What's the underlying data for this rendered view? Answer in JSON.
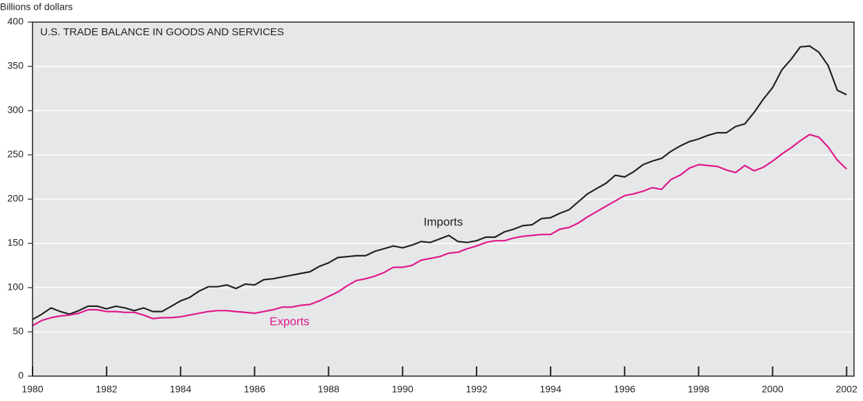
{
  "chart_data": {
    "type": "line",
    "title": "U.S. TRADE BALANCE IN GOODS AND SERVICES",
    "y_label": "Billions of dollars",
    "x": [
      1980,
      1980.25,
      1980.5,
      1980.75,
      1981,
      1981.25,
      1981.5,
      1981.75,
      1982,
      1982.25,
      1982.5,
      1982.75,
      1983,
      1983.25,
      1983.5,
      1983.75,
      1984,
      1984.25,
      1984.5,
      1984.75,
      1985,
      1985.25,
      1985.5,
      1985.75,
      1986,
      1986.25,
      1986.5,
      1986.75,
      1987,
      1987.25,
      1987.5,
      1987.75,
      1988,
      1988.25,
      1988.5,
      1988.75,
      1989,
      1989.25,
      1989.5,
      1989.75,
      1990,
      1990.25,
      1990.5,
      1990.75,
      1991,
      1991.25,
      1991.5,
      1991.75,
      1992,
      1992.25,
      1992.5,
      1992.75,
      1993,
      1993.25,
      1993.5,
      1993.75,
      1994,
      1994.25,
      1994.5,
      1994.75,
      1995,
      1995.25,
      1995.5,
      1995.75,
      1996,
      1996.25,
      1996.5,
      1996.75,
      1997,
      1997.25,
      1997.5,
      1997.75,
      1998,
      1998.25,
      1998.5,
      1998.75,
      1999,
      1999.25,
      1999.5,
      1999.75,
      2000,
      2000.25,
      2000.5,
      2000.75,
      2001,
      2001.25,
      2001.5,
      2001.75,
      2002
    ],
    "series": [
      {
        "name": "Imports",
        "color": "#231f20",
        "values": [
          64,
          70,
          77,
          73,
          70,
          74,
          79,
          79,
          76,
          79,
          77,
          74,
          77,
          73,
          73,
          79,
          85,
          89,
          96,
          101,
          101,
          103,
          99,
          104,
          103,
          109,
          110,
          112,
          114,
          116,
          118,
          124,
          128,
          134,
          135,
          136,
          136,
          141,
          144,
          147,
          145,
          148,
          152,
          151,
          155,
          159,
          152,
          151,
          153,
          157,
          157,
          163,
          166,
          170,
          171,
          178,
          179,
          184,
          188,
          197,
          206,
          212,
          218,
          227,
          225,
          231,
          239,
          243,
          246,
          254,
          260,
          265,
          268,
          272,
          275,
          275,
          282,
          285,
          298,
          313,
          326,
          346,
          358,
          372,
          373,
          366,
          351,
          323,
          318
        ]
      },
      {
        "name": "Exports",
        "color": "#e0168c",
        "values": [
          57,
          63,
          66,
          68,
          69,
          71,
          75,
          75,
          73,
          73,
          72,
          72,
          69,
          65,
          66,
          66,
          67,
          69,
          71,
          73,
          74,
          74,
          73,
          72,
          71,
          73,
          75,
          78,
          78,
          80,
          81,
          85,
          90,
          95,
          102,
          108,
          110,
          113,
          117,
          123,
          123,
          125,
          131,
          133,
          135,
          139,
          140,
          144,
          147,
          151,
          153,
          153,
          156,
          158,
          159,
          160,
          160,
          166,
          168,
          173,
          180,
          186,
          192,
          198,
          204,
          206,
          209,
          213,
          211,
          222,
          227,
          235,
          239,
          238,
          237,
          233,
          230,
          238,
          232,
          236,
          243,
          251,
          258,
          266,
          273,
          270,
          259,
          244,
          234
        ]
      }
    ],
    "xlim": [
      1980,
      2002.2
    ],
    "ylim": [
      0,
      400
    ],
    "xticks": [
      1980,
      1982,
      1984,
      1986,
      1988,
      1990,
      1992,
      1994,
      1996,
      1998,
      2000,
      2002
    ],
    "yticks": [
      0,
      50,
      100,
      150,
      200,
      250,
      300,
      350,
      400
    ],
    "grid": true
  }
}
